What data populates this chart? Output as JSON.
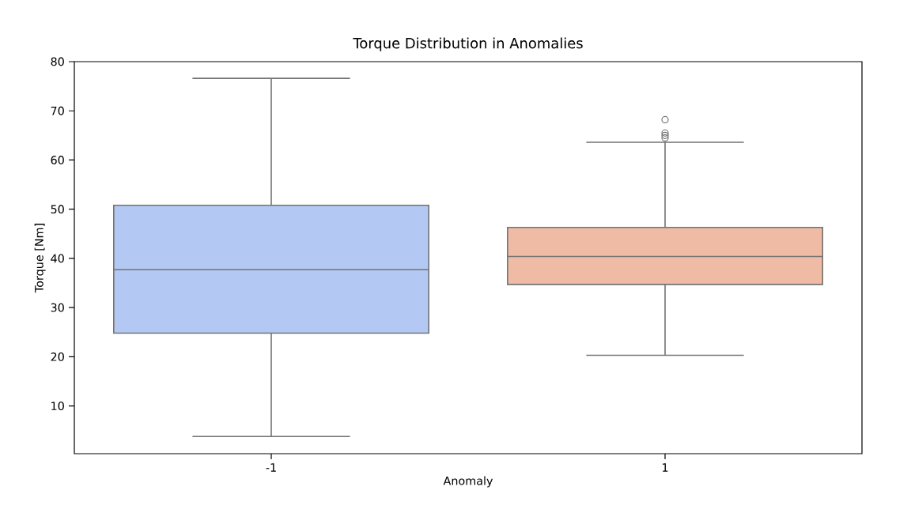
{
  "chart_data": {
    "type": "box",
    "title": "Torque Distribution in Anomalies",
    "xlabel": "Anomaly",
    "ylabel": "Torque [Nm]",
    "categories": [
      "-1",
      "1"
    ],
    "colors": [
      "#b3c8f2",
      "#efbba5"
    ],
    "boxes": [
      {
        "low": 3.8,
        "q1": 24.8,
        "median": 37.7,
        "q3": 50.8,
        "high": 76.6
      },
      {
        "low": 20.3,
        "q1": 34.7,
        "median": 40.4,
        "q3": 46.3,
        "high": 63.6,
        "outliers": [
          68.2,
          65.5,
          65,
          64.5
        ]
      }
    ],
    "ylim": [
      0.3,
      80
    ],
    "yticks": [
      10,
      20,
      30,
      40,
      50,
      60,
      70,
      80
    ]
  }
}
